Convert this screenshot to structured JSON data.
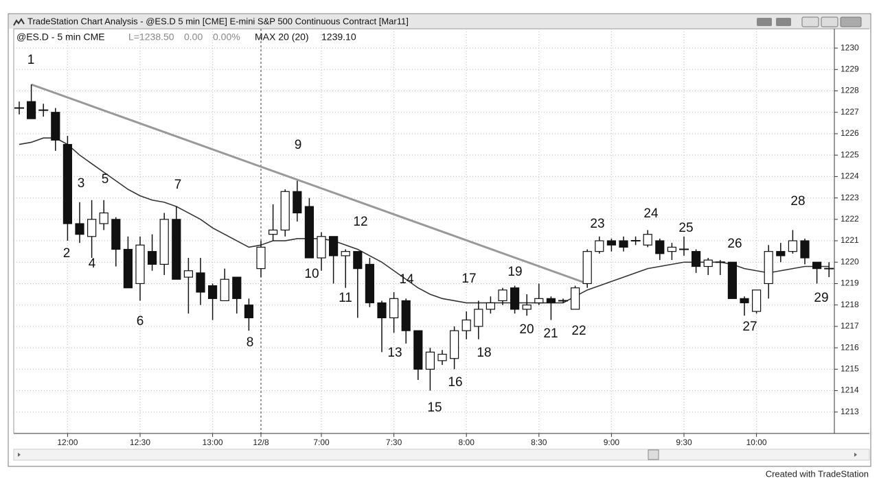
{
  "window_title": "TradeStation Chart Analysis - @ES.D 5 min [CME] E-mini S&P 500 Continuous Contract [Mar11]",
  "info": {
    "symbol": "@ES.D - 5 min CME",
    "last": "L=1238.50",
    "change": "0.00",
    "change_pct": "0.00%",
    "indicator": "MAX 20 (20)",
    "indicator_value": "1239.10"
  },
  "footer": "Created with TradeStation",
  "chart_data": {
    "type": "candlestick",
    "categories": [
      null,
      null,
      null,
      null,
      "12:00",
      null,
      null,
      null,
      null,
      null,
      "12:30",
      null,
      null,
      null,
      null,
      null,
      "13:00",
      null,
      null,
      null,
      "12/8",
      null,
      null,
      null,
      null,
      "7:00",
      null,
      null,
      null,
      null,
      null,
      "7:30",
      null,
      null,
      null,
      null,
      null,
      "8:00",
      null,
      null,
      null,
      null,
      null,
      "8:30",
      null,
      null,
      null,
      null,
      null,
      "9:00",
      null,
      null,
      null,
      null,
      null,
      "9:30",
      null,
      null,
      null,
      null,
      null,
      "10:00",
      null,
      null,
      null,
      null,
      null,
      null
    ],
    "open": [
      1227.2,
      1227.5,
      1227.1,
      1227.0,
      1225.5,
      1221.8,
      1221.2,
      1221.8,
      1222.0,
      1220.6,
      1219.0,
      1220.5,
      1219.9,
      1222.0,
      1219.3,
      1219.5,
      1218.9,
      1218.2,
      1219.3,
      1218.0,
      1219.7,
      1221.3,
      1221.5,
      1223.3,
      1222.6,
      1220.2,
      1221.2,
      1220.3,
      1220.5,
      1219.9,
      1218.1,
      1217.4,
      1218.2,
      1216.8,
      1215.0,
      1215.4,
      1215.5,
      1216.8,
      1217.0,
      1217.8,
      1218.2,
      1218.8,
      1217.8,
      1218.1,
      1218.3,
      1218.2,
      1217.8,
      1219.0,
      1220.5,
      1221.0,
      1221.0,
      1221.0,
      1220.8,
      1221.0,
      1220.5,
      1220.6,
      1220.5,
      1219.8,
      1220.0,
      1220.0,
      1218.3,
      1217.7,
      1219.0,
      1220.5,
      1220.5,
      1221.0,
      1220.0,
      1219.7
    ],
    "high": [
      1227.5,
      1228.3,
      1227.4,
      1227.2,
      1225.9,
      1222.8,
      1222.9,
      1222.9,
      1222.1,
      1221.2,
      1221.2,
      1221.3,
      1222.3,
      1222.6,
      1220.2,
      1220.2,
      1219.0,
      1219.7,
      1219.3,
      1218.3,
      1221.0,
      1222.7,
      1223.4,
      1223.8,
      1223.0,
      1221.4,
      1221.2,
      1220.6,
      1220.5,
      1220.2,
      1218.2,
      1218.6,
      1218.3,
      1216.8,
      1216.0,
      1215.9,
      1217.0,
      1217.7,
      1218.2,
      1218.4,
      1218.8,
      1218.9,
      1218.5,
      1219.0,
      1218.4,
      1218.3,
      1218.9,
      1220.6,
      1221.2,
      1221.1,
      1221.2,
      1221.2,
      1221.5,
      1221.1,
      1220.9,
      1221.2,
      1220.6,
      1220.2,
      1220.1,
      1220.0,
      1218.4,
      1218.7,
      1220.8,
      1220.9,
      1221.5,
      1221.1,
      1220.0,
      1220.0
    ],
    "low": [
      1226.9,
      1226.7,
      1226.8,
      1225.2,
      1221.0,
      1220.9,
      1220.2,
      1221.5,
      1219.8,
      1218.8,
      1218.2,
      1219.6,
      1219.4,
      1219.2,
      1217.6,
      1218.0,
      1217.3,
      1218.2,
      1217.6,
      1216.8,
      1219.3,
      1221.0,
      1221.2,
      1221.9,
      1220.2,
      1219.6,
      1219.0,
      1218.8,
      1217.4,
      1217.9,
      1215.8,
      1216.7,
      1216.2,
      1214.5,
      1214.0,
      1215.2,
      1215.0,
      1216.4,
      1216.4,
      1217.6,
      1218.0,
      1217.6,
      1217.5,
      1218.0,
      1217.3,
      1218.1,
      1217.8,
      1218.8,
      1220.4,
      1220.5,
      1220.5,
      1220.8,
      1220.7,
      1220.1,
      1220.1,
      1220.3,
      1219.5,
      1219.4,
      1219.4,
      1218.3,
      1217.5,
      1217.6,
      1218.3,
      1220.0,
      1220.4,
      1219.9,
      1219.0,
      1219.3
    ],
    "close": [
      1227.2,
      1226.7,
      1227.1,
      1225.7,
      1221.8,
      1221.3,
      1222.0,
      1222.3,
      1220.6,
      1218.8,
      1220.8,
      1219.9,
      1222.0,
      1219.2,
      1219.6,
      1218.6,
      1218.3,
      1219.2,
      1218.3,
      1217.4,
      1220.7,
      1221.5,
      1223.3,
      1222.3,
      1220.2,
      1221.2,
      1220.3,
      1220.5,
      1219.7,
      1218.1,
      1217.4,
      1218.3,
      1216.8,
      1215.0,
      1215.8,
      1215.7,
      1216.8,
      1217.3,
      1217.8,
      1218.1,
      1218.7,
      1217.8,
      1218.0,
      1218.3,
      1218.1,
      1218.2,
      1218.8,
      1220.5,
      1221.0,
      1220.8,
      1220.7,
      1221.0,
      1221.3,
      1220.4,
      1220.7,
      1220.6,
      1219.8,
      1220.1,
      1220.0,
      1218.3,
      1218.1,
      1218.7,
      1220.5,
      1220.3,
      1221.0,
      1220.2,
      1219.7,
      1219.7
    ],
    "moving_average": {
      "color": "#333333",
      "values": [
        1225.5,
        1225.6,
        1225.8,
        1225.8,
        1225.5,
        1225.0,
        1224.6,
        1224.2,
        1223.8,
        1223.4,
        1223.1,
        1222.9,
        1222.8,
        1222.6,
        1222.3,
        1222.0,
        1221.6,
        1221.3,
        1221.0,
        1220.7,
        1220.8,
        1221.0,
        1221.0,
        1221.1,
        1221.1,
        1221.1,
        1221.0,
        1220.8,
        1220.6,
        1220.3,
        1220.0,
        1219.6,
        1219.2,
        1218.8,
        1218.5,
        1218.3,
        1218.2,
        1218.1,
        1218.1,
        1218.1,
        1218.1,
        1218.1,
        1218.1,
        1218.1,
        1218.1,
        1218.1,
        1218.4,
        1218.7,
        1218.9,
        1219.1,
        1219.3,
        1219.5,
        1219.7,
        1219.8,
        1219.9,
        1220.0,
        1220.0,
        1220.0,
        1220.0,
        1219.9,
        1219.7,
        1219.6,
        1219.5,
        1219.6,
        1219.7,
        1219.8,
        1219.8,
        1219.8
      ]
    },
    "trendline": {
      "color": "#999999",
      "from": [
        1,
        1228.3
      ],
      "to": [
        47,
        1219.0
      ]
    },
    "session_break": 20,
    "up_color": "#ffffff",
    "down_color": "#111111",
    "ylim": [
      1212.0,
      1230.9
    ],
    "yticks": [
      1213,
      1214,
      1215,
      1216,
      1217,
      1218,
      1219,
      1220,
      1221,
      1222,
      1223,
      1224,
      1225,
      1226,
      1227,
      1228,
      1229,
      1230
    ],
    "grid": true,
    "annotations": [
      "1",
      "2",
      "3",
      "4",
      "5",
      "6",
      "7",
      "8",
      "9",
      "10",
      "11",
      "12",
      "13",
      "14",
      "15",
      "16",
      "17",
      "18",
      "19",
      "20",
      "21",
      "22",
      "23",
      "24",
      "25",
      "26",
      "27",
      "28",
      "29"
    ]
  }
}
